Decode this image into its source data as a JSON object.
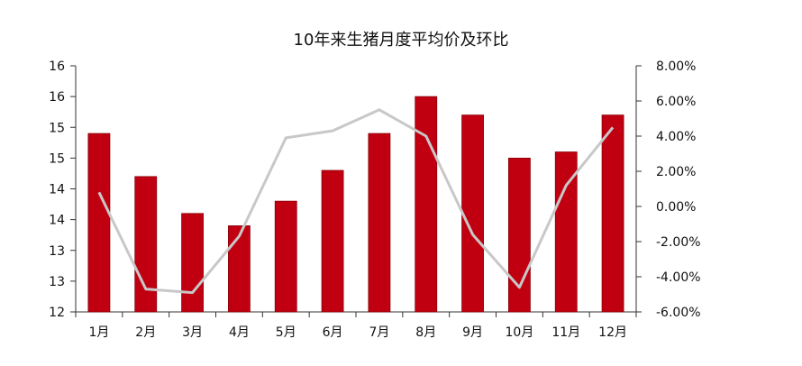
{
  "chart_data": {
    "type": "bar",
    "title": "10年来生猪月度平均价及环比",
    "categories": [
      "1月",
      "2月",
      "3月",
      "4月",
      "5月",
      "6月",
      "7月",
      "8月",
      "9月",
      "10月",
      "11月",
      "12月"
    ],
    "series": [
      {
        "type": "bar",
        "axis": "left",
        "values": [
          14.9,
          14.2,
          13.6,
          13.4,
          13.8,
          14.3,
          14.9,
          15.5,
          15.2,
          14.5,
          14.6,
          15.2
        ]
      },
      {
        "type": "line",
        "axis": "right",
        "values": [
          0.8,
          -4.7,
          -4.9,
          -1.7,
          3.9,
          4.3,
          5.5,
          4.0,
          -1.6,
          -4.6,
          1.2,
          4.5
        ]
      }
    ],
    "left_axis": {
      "ylim": [
        12,
        16.0
      ],
      "tick_values": [
        12,
        12.5,
        13,
        13.5,
        14,
        14.5,
        15,
        15.5,
        16
      ],
      "tick_labels": [
        "12",
        "13",
        "13",
        "14",
        "14",
        "15",
        "15",
        "16",
        "16"
      ]
    },
    "right_axis": {
      "ylim": [
        -6,
        8
      ],
      "tick_values": [
        -6,
        -4,
        -2,
        0,
        2,
        4,
        6,
        8
      ],
      "tick_labels": [
        "-6.00%",
        "-4.00%",
        "-2.00%",
        "0.00%",
        "2.00%",
        "4.00%",
        "6.00%",
        "8.00%"
      ]
    },
    "grid": false,
    "legend": "none",
    "colors": {
      "bar": "#c00010",
      "bar_edge": "#8a0008",
      "line": "#c8c8c8",
      "axis": "#333333"
    }
  }
}
